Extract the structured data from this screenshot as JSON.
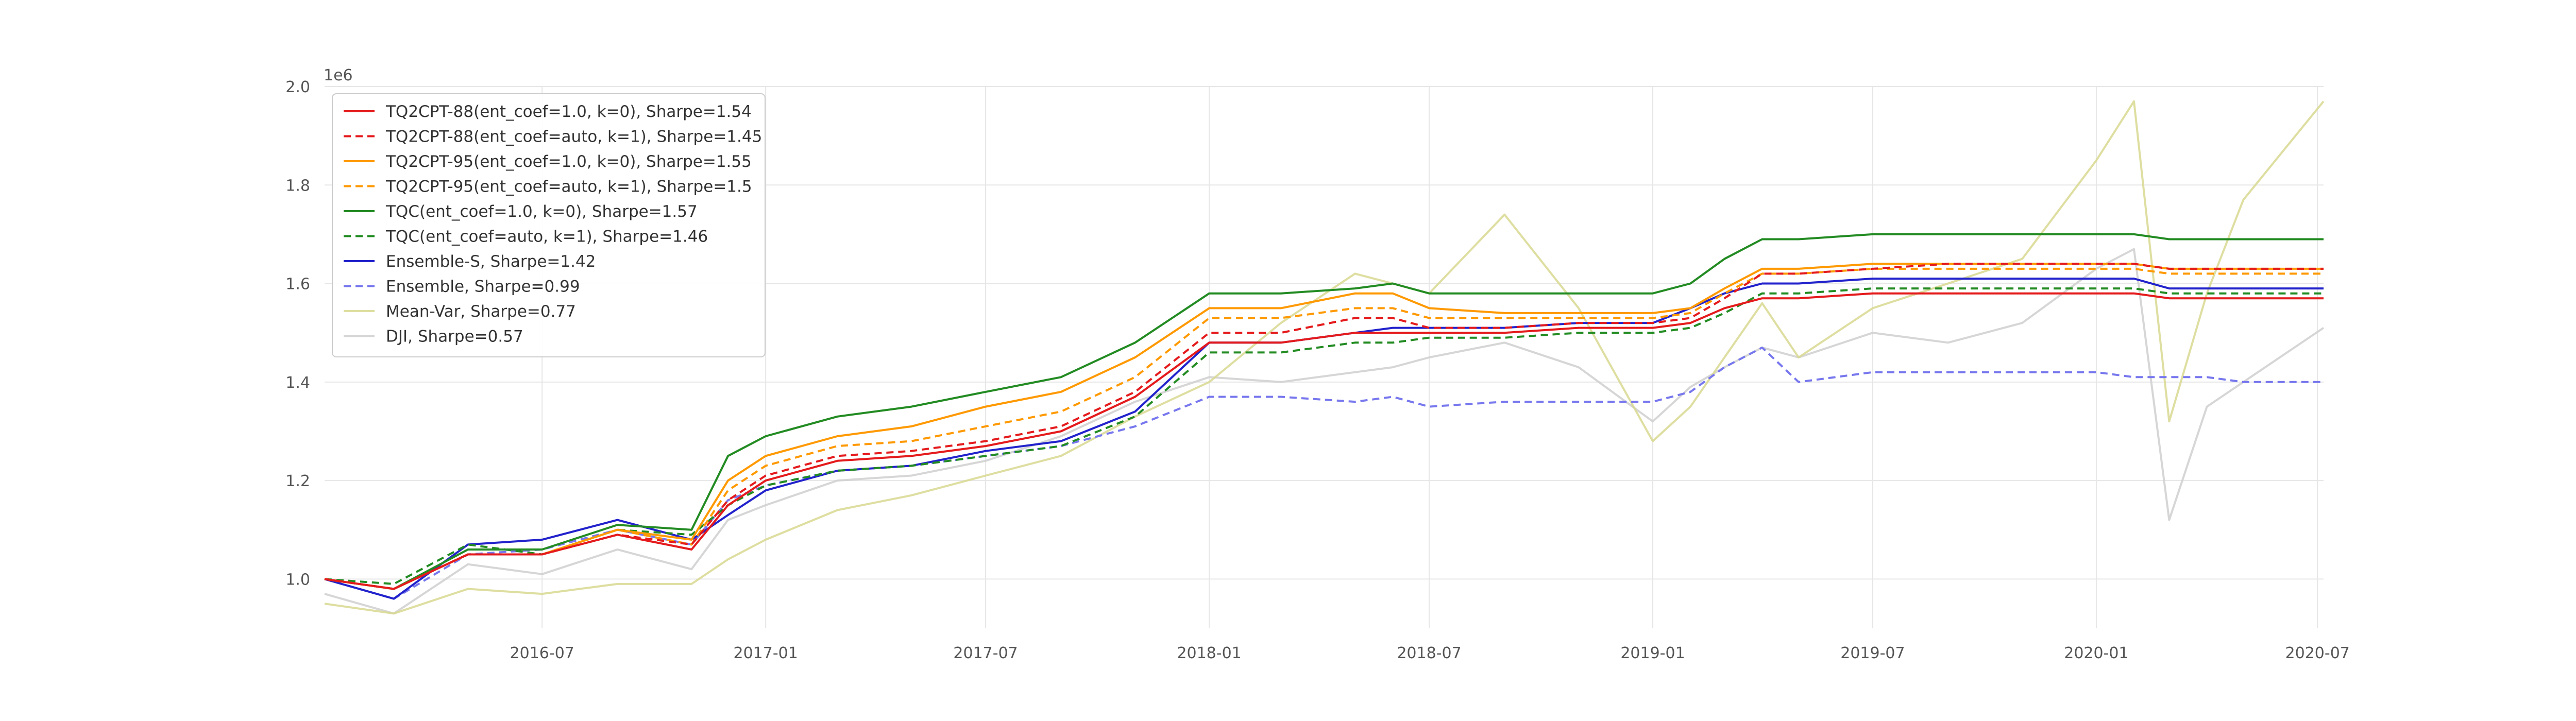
{
  "chart_data": {
    "type": "line",
    "title": "",
    "xlabel": "",
    "ylabel": "",
    "y_offset_text": "1e6",
    "x_tick_labels": [
      "2016-07",
      "2017-01",
      "2017-07",
      "2018-01",
      "2018-07",
      "2019-01",
      "2019-07",
      "2020-01",
      "2020-07"
    ],
    "y_tick_labels": [
      "1.0",
      "1.2",
      "1.4",
      "1.6",
      "1.8",
      "2.0"
    ],
    "y_ticks": [
      1.0,
      1.2,
      1.4,
      1.6,
      1.8,
      2.0
    ],
    "ylim": [
      0.9,
      2.0
    ],
    "xlim": [
      "2016-01-04",
      "2020-07-06"
    ],
    "grid": true,
    "legend_position": "top-left",
    "x": [
      "2016-01-04",
      "2016-03-01",
      "2016-05-01",
      "2016-07-01",
      "2016-09-01",
      "2016-11-01",
      "2016-12-01",
      "2017-01-01",
      "2017-03-01",
      "2017-05-01",
      "2017-07-01",
      "2017-09-01",
      "2017-11-01",
      "2018-01-01",
      "2018-03-01",
      "2018-05-01",
      "2018-06-01",
      "2018-07-01",
      "2018-09-01",
      "2018-11-01",
      "2019-01-01",
      "2019-02-01",
      "2019-03-01",
      "2019-04-01",
      "2019-05-01",
      "2019-07-01",
      "2019-09-01",
      "2019-11-01",
      "2020-01-01",
      "2020-02-01",
      "2020-03-01",
      "2020-04-01",
      "2020-05-01",
      "2020-07-06"
    ],
    "series": [
      {
        "name": "TQ2CPT-88(ent_coef=1.0, k=0), Sharpe=1.54",
        "color": "#e41a1c",
        "dash": "solid",
        "opacity": 1.0,
        "values": [
          1.0,
          0.98,
          1.05,
          1.05,
          1.09,
          1.06,
          1.15,
          1.2,
          1.24,
          1.25,
          1.27,
          1.3,
          1.37,
          1.48,
          1.48,
          1.5,
          1.5,
          1.5,
          1.5,
          1.51,
          1.51,
          1.52,
          1.55,
          1.57,
          1.57,
          1.58,
          1.58,
          1.58,
          1.58,
          1.58,
          1.57,
          1.57,
          1.57,
          1.57
        ]
      },
      {
        "name": "TQ2CPT-88(ent_coef=auto, k=1), Sharpe=1.45",
        "color": "#e41a1c",
        "dash": "dashed",
        "opacity": 1.0,
        "values": [
          1.0,
          0.98,
          1.05,
          1.05,
          1.09,
          1.07,
          1.16,
          1.21,
          1.25,
          1.26,
          1.28,
          1.31,
          1.38,
          1.5,
          1.5,
          1.53,
          1.53,
          1.51,
          1.51,
          1.52,
          1.52,
          1.53,
          1.57,
          1.62,
          1.62,
          1.63,
          1.64,
          1.64,
          1.64,
          1.64,
          1.63,
          1.63,
          1.63,
          1.63
        ]
      },
      {
        "name": "TQ2CPT-95(ent_coef=1.0, k=0), Sharpe=1.55",
        "color": "#ff9900",
        "dash": "solid",
        "opacity": 1.0,
        "values": [
          1.0,
          0.98,
          1.05,
          1.05,
          1.1,
          1.08,
          1.2,
          1.25,
          1.29,
          1.31,
          1.35,
          1.38,
          1.45,
          1.55,
          1.55,
          1.58,
          1.58,
          1.55,
          1.54,
          1.54,
          1.54,
          1.55,
          1.59,
          1.63,
          1.63,
          1.64,
          1.64,
          1.64,
          1.64,
          1.64,
          1.63,
          1.63,
          1.63,
          1.63
        ]
      },
      {
        "name": "TQ2CPT-95(ent_coef=auto, k=1), Sharpe=1.5",
        "color": "#ff9900",
        "dash": "dashed",
        "opacity": 1.0,
        "values": [
          1.0,
          0.98,
          1.05,
          1.05,
          1.1,
          1.07,
          1.18,
          1.23,
          1.27,
          1.28,
          1.31,
          1.34,
          1.41,
          1.53,
          1.53,
          1.55,
          1.55,
          1.53,
          1.53,
          1.53,
          1.53,
          1.54,
          1.58,
          1.62,
          1.62,
          1.63,
          1.63,
          1.63,
          1.63,
          1.63,
          1.62,
          1.62,
          1.62,
          1.62
        ]
      },
      {
        "name": "TQC(ent_coef=1.0, k=0), Sharpe=1.57",
        "color": "#228b22",
        "dash": "solid",
        "opacity": 1.0,
        "values": [
          1.0,
          0.98,
          1.06,
          1.06,
          1.11,
          1.1,
          1.25,
          1.29,
          1.33,
          1.35,
          1.38,
          1.41,
          1.48,
          1.58,
          1.58,
          1.59,
          1.6,
          1.58,
          1.58,
          1.58,
          1.58,
          1.6,
          1.65,
          1.69,
          1.69,
          1.7,
          1.7,
          1.7,
          1.7,
          1.7,
          1.69,
          1.69,
          1.69,
          1.69
        ]
      },
      {
        "name": "TQC(ent_coef=auto, k=1), Sharpe=1.46",
        "color": "#228b22",
        "dash": "dashed",
        "opacity": 1.0,
        "values": [
          1.0,
          0.99,
          1.07,
          1.05,
          1.1,
          1.09,
          1.15,
          1.19,
          1.22,
          1.23,
          1.25,
          1.27,
          1.33,
          1.46,
          1.46,
          1.48,
          1.48,
          1.49,
          1.49,
          1.5,
          1.5,
          1.51,
          1.54,
          1.58,
          1.58,
          1.59,
          1.59,
          1.59,
          1.59,
          1.59,
          1.58,
          1.58,
          1.58,
          1.58
        ]
      },
      {
        "name": "Ensemble-S, Sharpe=1.42",
        "color": "#2222cc",
        "dash": "solid",
        "opacity": 1.0,
        "values": [
          1.0,
          0.96,
          1.07,
          1.08,
          1.12,
          1.08,
          1.13,
          1.18,
          1.22,
          1.23,
          1.26,
          1.28,
          1.34,
          1.48,
          1.48,
          1.5,
          1.51,
          1.51,
          1.51,
          1.52,
          1.52,
          1.55,
          1.58,
          1.6,
          1.6,
          1.61,
          1.61,
          1.61,
          1.61,
          1.61,
          1.59,
          1.59,
          1.59,
          1.59
        ]
      },
      {
        "name": "Ensemble, Sharpe=0.99",
        "color": "#7777ee",
        "dash": "dashed",
        "opacity": 1.0,
        "values": [
          1.0,
          0.96,
          1.05,
          1.06,
          1.1,
          1.07,
          1.16,
          1.19,
          1.22,
          1.23,
          1.25,
          1.27,
          1.31,
          1.37,
          1.37,
          1.36,
          1.37,
          1.35,
          1.36,
          1.36,
          1.36,
          1.38,
          1.43,
          1.47,
          1.4,
          1.42,
          1.42,
          1.42,
          1.42,
          1.41,
          1.41,
          1.41,
          1.4,
          1.4
        ]
      },
      {
        "name": "Mean-Var, Sharpe=0.77",
        "color": "#d8d890",
        "dash": "solid",
        "opacity": 0.85,
        "values": [
          0.95,
          0.93,
          0.98,
          0.97,
          0.99,
          0.99,
          1.04,
          1.08,
          1.14,
          1.17,
          1.21,
          1.25,
          1.33,
          1.4,
          1.52,
          1.62,
          1.6,
          1.58,
          1.74,
          1.55,
          1.28,
          1.35,
          1.45,
          1.56,
          1.45,
          1.55,
          1.6,
          1.65,
          1.85,
          1.97,
          1.32,
          1.58,
          1.77,
          1.97
        ]
      },
      {
        "name": "DJI, Sharpe=0.57",
        "color": "#cfcfcf",
        "dash": "solid",
        "opacity": 0.85,
        "values": [
          0.97,
          0.93,
          1.03,
          1.01,
          1.06,
          1.02,
          1.12,
          1.15,
          1.2,
          1.21,
          1.24,
          1.29,
          1.36,
          1.41,
          1.4,
          1.42,
          1.43,
          1.45,
          1.48,
          1.43,
          1.32,
          1.39,
          1.43,
          1.47,
          1.45,
          1.5,
          1.48,
          1.52,
          1.63,
          1.67,
          1.12,
          1.35,
          1.4,
          1.51
        ]
      }
    ]
  }
}
